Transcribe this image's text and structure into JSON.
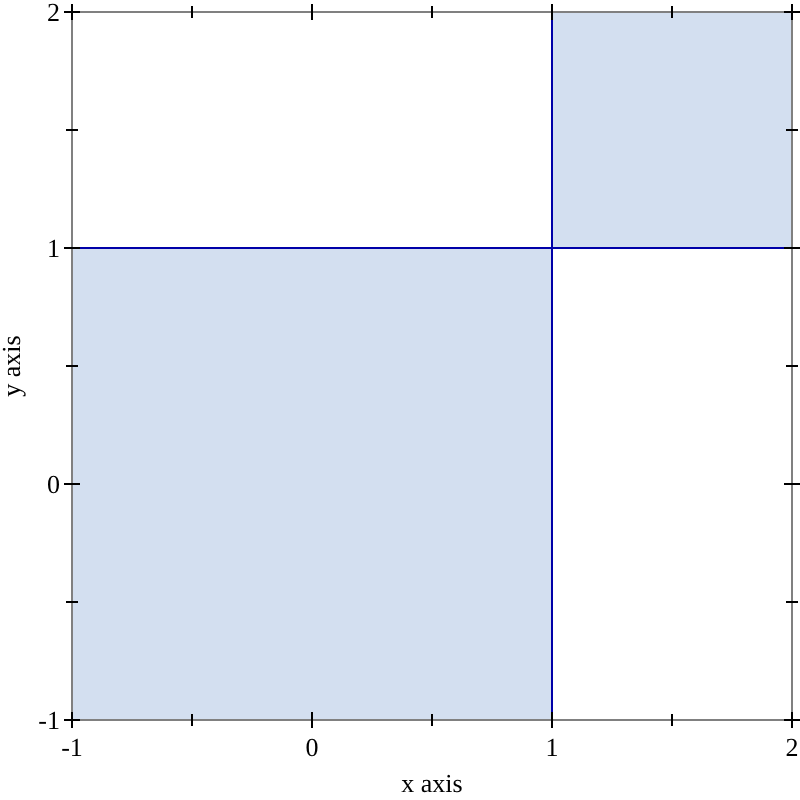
{
  "chart_data": {
    "type": "histogram",
    "bins": [
      -1,
      1,
      2
    ],
    "values": [
      2,
      1
    ],
    "base": [
      -1,
      1
    ],
    "color": "#d3dff0",
    "xlabel": "x axis",
    "ylabel": "y axis",
    "xlim": [
      -1,
      2
    ],
    "ylim": [
      -1,
      2
    ],
    "xticks": [
      -1,
      {
        "value": -0.5,
        "label": null
      },
      0,
      {
        "value": 0.5,
        "label": null
      },
      1,
      {
        "value": 1.5,
        "label": null
      },
      2
    ],
    "yticks": [
      -1,
      {
        "value": -0.5,
        "label": null
      },
      0,
      {
        "value": 0.5,
        "label": null
      },
      1,
      {
        "value": 1.5,
        "label": null
      },
      2
    ]
  }
}
